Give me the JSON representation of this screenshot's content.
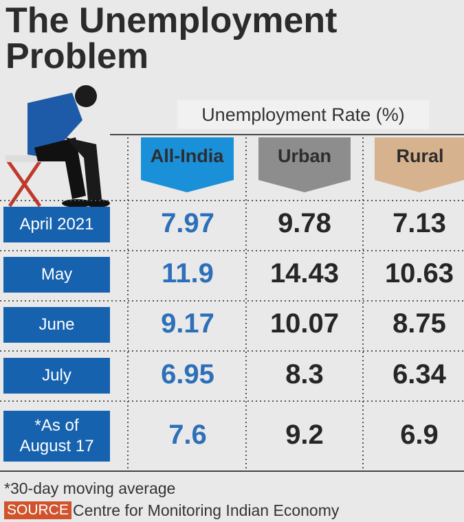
{
  "header": {
    "title": "The Unemployment Problem",
    "subtitle": "Unemployment Rate (%)"
  },
  "table": {
    "columns": [
      "All-India",
      "Urban",
      "Rural"
    ],
    "rows": [
      {
        "label": "April 2021",
        "values": [
          "7.97",
          "9.78",
          "7.13"
        ]
      },
      {
        "label": "May",
        "values": [
          "11.9",
          "14.43",
          "10.63"
        ]
      },
      {
        "label": "June",
        "values": [
          "9.17",
          "10.07",
          "8.75"
        ]
      },
      {
        "label": "July",
        "values": [
          "6.95",
          "8.3",
          "6.34"
        ]
      },
      {
        "label": "*As of August 17",
        "values": [
          "7.6",
          "9.2",
          "6.9"
        ]
      }
    ]
  },
  "footer": {
    "note": "*30-day moving average",
    "source_label": "SOURCE",
    "source": "Centre for Monitoring Indian Economy"
  }
}
